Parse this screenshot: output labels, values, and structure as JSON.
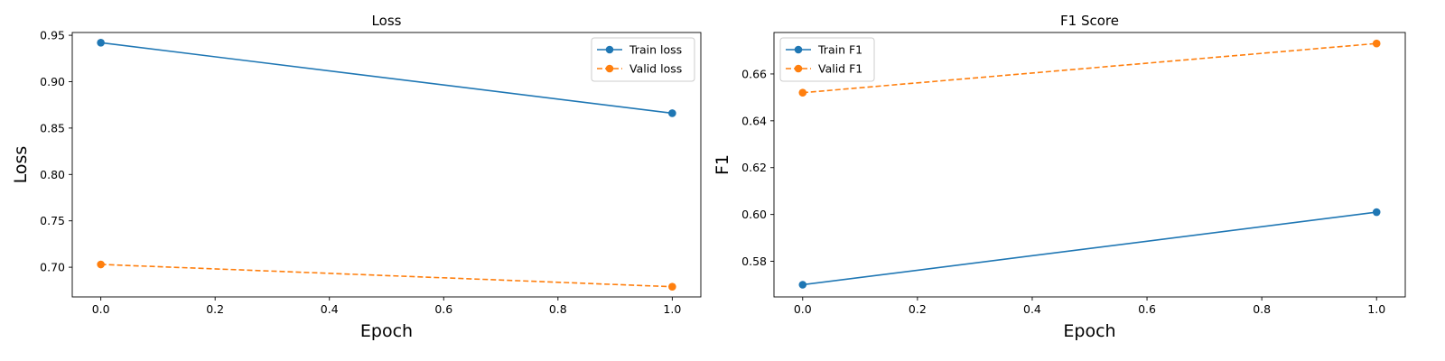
{
  "figure": {
    "panels": [
      {
        "title": "Loss",
        "xlabel": "Epoch",
        "ylabel": "Loss",
        "legend": "top-right",
        "legend_labels": [
          "Train loss",
          "Valid loss"
        ]
      },
      {
        "title": "F1 Score",
        "xlabel": "Epoch",
        "ylabel": "F1",
        "legend": "top-left",
        "legend_labels": [
          "Train F1",
          "Valid F1"
        ]
      }
    ]
  },
  "chart_data": [
    {
      "type": "line",
      "title": "Loss",
      "xlabel": "Epoch",
      "ylabel": "Loss",
      "x": [
        0.0,
        1.0
      ],
      "xlim": [
        -0.05,
        1.05
      ],
      "ylim": [
        0.668,
        0.953
      ],
      "xticks": [
        "0.0",
        "0.2",
        "0.4",
        "0.6",
        "0.8",
        "1.0"
      ],
      "yticks": [
        "0.70",
        "0.75",
        "0.80",
        "0.85",
        "0.90",
        "0.95"
      ],
      "grid": false,
      "legend": "top-right",
      "series": [
        {
          "name": "Train loss",
          "values": [
            0.942,
            0.866
          ],
          "color": "#1f77b4",
          "style": "solid",
          "marker": "circle"
        },
        {
          "name": "Valid loss",
          "values": [
            0.703,
            0.679
          ],
          "color": "#ff7f0e",
          "style": "dashed",
          "marker": "circle"
        }
      ]
    },
    {
      "type": "line",
      "title": "F1 Score",
      "xlabel": "Epoch",
      "ylabel": "F1",
      "x": [
        0.0,
        1.0
      ],
      "xlim": [
        -0.05,
        1.05
      ],
      "ylim": [
        0.5648,
        0.6777
      ],
      "xticks": [
        "0.0",
        "0.2",
        "0.4",
        "0.6",
        "0.8",
        "1.0"
      ],
      "yticks": [
        "0.58",
        "0.60",
        "0.62",
        "0.64",
        "0.66"
      ],
      "grid": false,
      "legend": "top-left",
      "series": [
        {
          "name": "Train F1",
          "values": [
            0.57,
            0.601
          ],
          "color": "#1f77b4",
          "style": "solid",
          "marker": "circle"
        },
        {
          "name": "Valid F1",
          "values": [
            0.652,
            0.673
          ],
          "color": "#ff7f0e",
          "style": "dashed",
          "marker": "circle"
        }
      ]
    }
  ]
}
